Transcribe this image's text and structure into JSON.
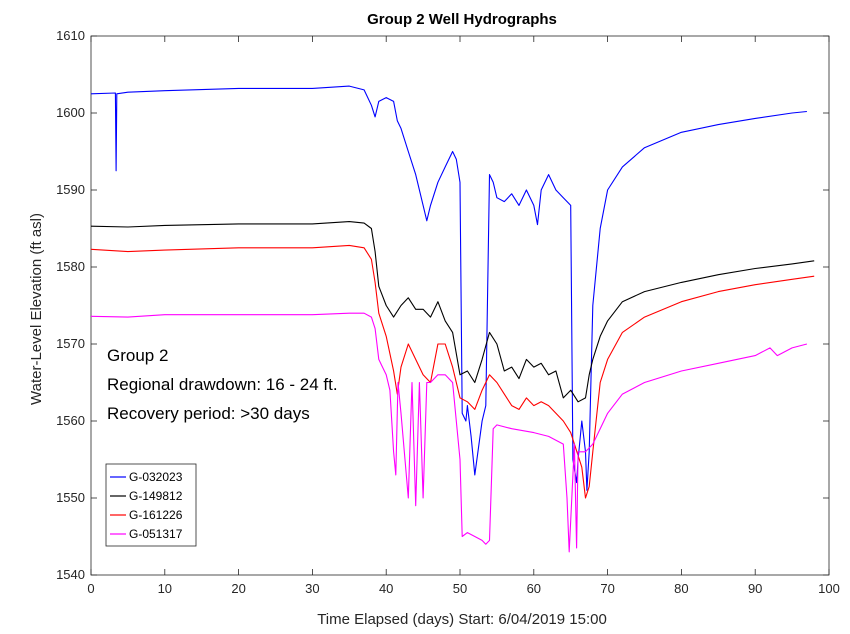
{
  "chart_data": {
    "type": "line",
    "title": "Group 2 Well Hydrographs",
    "xlabel": "Time Elapsed (days) Start: 6/04/2019 15:00",
    "ylabel": "Water-Level Elevation (ft asl)",
    "xlim": [
      0,
      100
    ],
    "ylim": [
      1540,
      1610
    ],
    "xticks": [
      0,
      10,
      20,
      30,
      40,
      50,
      60,
      70,
      80,
      90,
      100
    ],
    "yticks": [
      1540,
      1550,
      1560,
      1570,
      1580,
      1590,
      1600,
      1610
    ],
    "grid": false,
    "legend_position": "bottom-left",
    "annotation": [
      "Group 2",
      "Regional drawdown: 16 - 24  ft.",
      "Recovery period: >30 days"
    ],
    "series": [
      {
        "name": "G-032023",
        "color": "#0000ff",
        "x": [
          0,
          3.3,
          3.4,
          3.5,
          5,
          10,
          20,
          30,
          35,
          37,
          38,
          38.5,
          39,
          40,
          41,
          41.5,
          42,
          43,
          44,
          45,
          45.5,
          46,
          47,
          48,
          49,
          49.5,
          50,
          50.3,
          50.8,
          51,
          51.5,
          52,
          53,
          53.5,
          54,
          54.5,
          55,
          56,
          57,
          58,
          59,
          60,
          60.5,
          61,
          62,
          63,
          64,
          65,
          65.3,
          65.8,
          66,
          66.5,
          67,
          67.2,
          67.5,
          68,
          69,
          70,
          72,
          75,
          80,
          85,
          90,
          95,
          97
        ],
        "y": [
          1602.5,
          1602.6,
          1592.5,
          1602.5,
          1602.7,
          1602.9,
          1603.2,
          1603.2,
          1603.5,
          1603,
          1601,
          1599.5,
          1601.5,
          1602,
          1601.5,
          1599,
          1598,
          1595,
          1592,
          1588,
          1586,
          1588,
          1591,
          1593,
          1595,
          1594,
          1591,
          1561,
          1560,
          1562,
          1558,
          1553,
          1560,
          1562,
          1592,
          1591,
          1589,
          1588.5,
          1589.5,
          1588,
          1590,
          1588,
          1585.5,
          1590,
          1592,
          1590,
          1589,
          1588,
          1555,
          1552,
          1555,
          1560,
          1556,
          1551,
          1556,
          1575,
          1585,
          1590,
          1593,
          1595.5,
          1597.5,
          1598.5,
          1599.3,
          1600,
          1600.2
        ]
      },
      {
        "name": "G-149812",
        "color": "#000000",
        "x": [
          0,
          5,
          10,
          20,
          30,
          35,
          37,
          38,
          38.5,
          39,
          40,
          41,
          42,
          43,
          44,
          45,
          46,
          47,
          48,
          49,
          50,
          51,
          52,
          53,
          54,
          55,
          56,
          57,
          58,
          59,
          60,
          61,
          62,
          63,
          64,
          65,
          66,
          67,
          67.5,
          68,
          69,
          70,
          72,
          75,
          80,
          85,
          90,
          95,
          98
        ],
        "y": [
          1585.3,
          1585.2,
          1585.4,
          1585.6,
          1585.6,
          1585.9,
          1585.7,
          1585,
          1582,
          1577.5,
          1575,
          1573.5,
          1575,
          1576,
          1574.5,
          1574.5,
          1573.5,
          1575.5,
          1573,
          1571.5,
          1566,
          1566.5,
          1565,
          1568,
          1571.5,
          1570,
          1566.5,
          1567,
          1565.5,
          1568,
          1567,
          1567.5,
          1566,
          1566.5,
          1563,
          1564,
          1562.5,
          1563,
          1566,
          1568,
          1571,
          1573,
          1575.5,
          1576.8,
          1578,
          1579,
          1579.8,
          1580.4,
          1580.8
        ]
      },
      {
        "name": "G-161226",
        "color": "#ff0000",
        "x": [
          0,
          5,
          10,
          20,
          30,
          35,
          37,
          38,
          38.5,
          39,
          40,
          41,
          41.5,
          42,
          43,
          44,
          45,
          46,
          47,
          48,
          49,
          50,
          51,
          52,
          53,
          54,
          55,
          56,
          57,
          58,
          59,
          60,
          61,
          62,
          63,
          64,
          65,
          66,
          66.5,
          67,
          67.5,
          68,
          69,
          70,
          72,
          75,
          80,
          85,
          90,
          95,
          98
        ],
        "y": [
          1582.3,
          1582,
          1582.2,
          1582.5,
          1582.5,
          1582.8,
          1582.5,
          1581,
          1578,
          1574,
          1571,
          1566.5,
          1563.5,
          1567,
          1570,
          1568,
          1566,
          1565,
          1570,
          1570,
          1567,
          1563,
          1562.5,
          1561.5,
          1564,
          1566,
          1565,
          1563.5,
          1562,
          1561.5,
          1563,
          1562,
          1562.5,
          1562,
          1561,
          1560,
          1558.5,
          1555.5,
          1554,
          1550,
          1551.5,
          1556,
          1565,
          1568,
          1571.5,
          1573.5,
          1575.5,
          1576.8,
          1577.7,
          1578.4,
          1578.8
        ]
      },
      {
        "name": "G-051317",
        "color": "#ff00ff",
        "x": [
          0,
          5,
          10,
          20,
          30,
          35,
          37,
          38,
          38.5,
          39,
          40,
          40.5,
          41,
          41.3,
          41.6,
          42,
          43,
          43.5,
          44,
          44.5,
          45,
          45.5,
          46,
          47,
          48,
          49,
          50,
          50.3,
          51,
          52,
          53,
          53.5,
          54,
          54.5,
          55,
          57,
          60,
          62,
          64,
          64.5,
          64.8,
          65.5,
          65.8,
          66,
          67,
          68,
          69,
          70,
          72,
          75,
          80,
          85,
          90,
          92,
          93,
          95,
          97
        ],
        "y": [
          1573.6,
          1573.5,
          1573.8,
          1573.8,
          1573.8,
          1574,
          1574,
          1573.5,
          1572,
          1568,
          1566,
          1564,
          1556,
          1553,
          1565,
          1561,
          1550,
          1565,
          1549,
          1565,
          1550,
          1565,
          1565,
          1566,
          1566,
          1565,
          1555,
          1545,
          1545.5,
          1545,
          1544.5,
          1544,
          1544.5,
          1559,
          1559.5,
          1559,
          1558.5,
          1558,
          1557,
          1550,
          1543,
          1557,
          1543.5,
          1556,
          1556,
          1557,
          1559,
          1561,
          1563.5,
          1565,
          1566.5,
          1567.5,
          1568.5,
          1569.5,
          1568.5,
          1569.5,
          1570
        ]
      }
    ]
  }
}
